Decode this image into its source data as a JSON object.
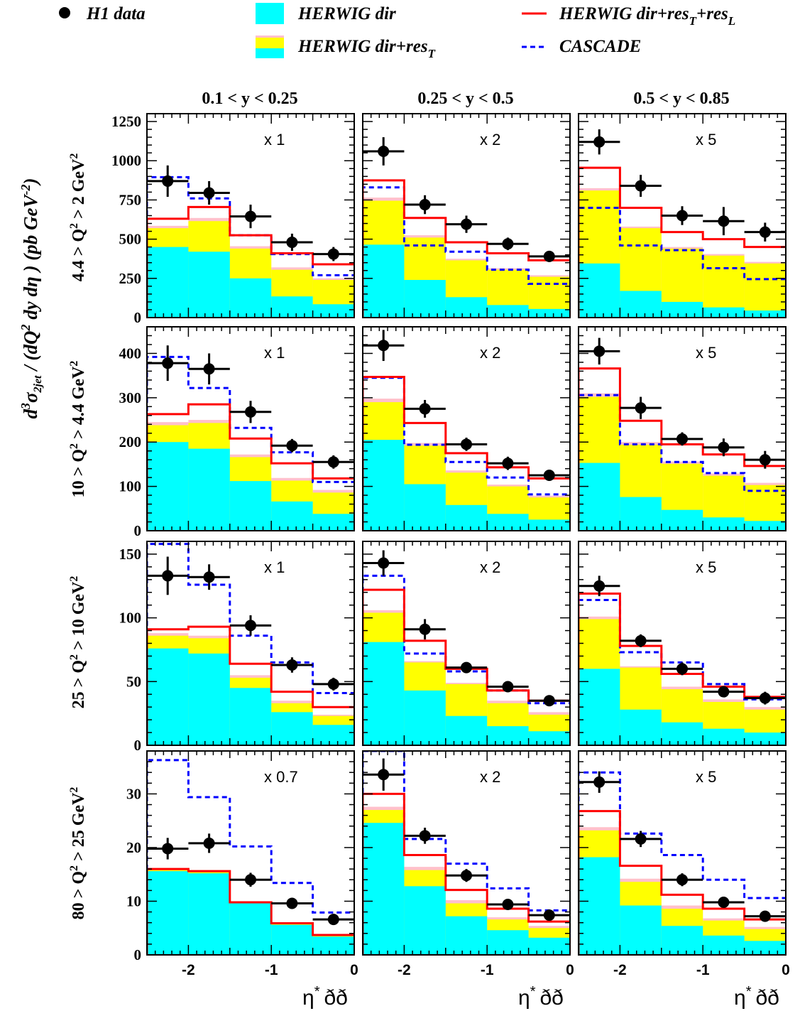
{
  "legend": {
    "h1_data": "H1 data",
    "herwig_dir": "HERWIG dir",
    "herwig_dir_res_t": "HERWIG dir+res",
    "herwig_dir_res_t_sub": "T",
    "herwig_full": "HERWIG dir+res",
    "herwig_full_sub1": "T",
    "herwig_full_mid": "+res",
    "herwig_full_sub2": "L",
    "cascade": "CASCADE"
  },
  "y_axis_label": {
    "main": "d",
    "sup3": "3",
    "sigma": "σ",
    "sub2jet": "2jet",
    "slash": " / (dQ",
    "sup2": "2",
    "rest": " dy dη )",
    "units": "(pb GeV",
    "units_sup": "-2",
    "units_close": ")"
  },
  "x_axis_label": {
    "eta": "η",
    "star": "*",
    "suffix": "ðð"
  },
  "colors": {
    "herwig_dir": "#00ffff",
    "herwig_res_t": "#ffff00",
    "herwig_pink": "#ffc0cb",
    "herwig_full": "#ff0000",
    "cascade": "#0000ff",
    "data": "#000000"
  },
  "chart_data": {
    "type": "bar",
    "x_edges": [
      -2.5,
      -2.0,
      -1.5,
      -1.0,
      -0.5,
      0.0
    ],
    "x_ticks": [
      "-2",
      "-1",
      "0"
    ],
    "columns": [
      "0.1 < y < 0.25",
      "0.25 < y < 0.5",
      "0.5 < y < 0.85"
    ],
    "rows": [
      {
        "label": "4.4 > Q",
        "label_sup": "2",
        "label_end": " > 2 GeV",
        "label_end_sup": "2",
        "ylim": [
          0,
          1300
        ],
        "yticks": [
          "0",
          "250",
          "500",
          "750",
          "1000",
          "1250"
        ],
        "panels": [
          {
            "scale": "x 1",
            "data_x": [
              -2.25,
              -1.75,
              -1.25,
              -0.75,
              -0.25
            ],
            "data_y": [
              870,
              795,
              645,
              480,
              405
            ],
            "data_err": [
              100,
              75,
              75,
              55,
              45
            ],
            "data_xerr": 0.25,
            "dir": [
              450,
              420,
              250,
              135,
              85
            ],
            "dir_res_t": [
              570,
              615,
              440,
              305,
              240
            ],
            "dir_res_t_pink": [
              585,
              635,
              455,
              320,
              250
            ],
            "full": [
              630,
              705,
              525,
              410,
              340
            ],
            "cascade": [
              895,
              760,
              525,
              405,
              270
            ]
          },
          {
            "scale": "x 2",
            "data_x": [
              -2.25,
              -1.75,
              -1.25,
              -0.75,
              -0.25
            ],
            "data_y": [
              1060,
              720,
              595,
              470,
              390
            ],
            "data_err": [
              90,
              60,
              55,
              40,
              35
            ],
            "data_xerr": 0.25,
            "dir": [
              465,
              240,
              130,
              80,
              55
            ],
            "dir_res_t": [
              745,
              510,
              365,
              305,
              260
            ],
            "dir_res_t_pink": [
              765,
              525,
              375,
              315,
              270
            ],
            "full": [
              875,
              635,
              480,
              410,
              365
            ],
            "cascade": [
              830,
              460,
              420,
              305,
              215
            ]
          },
          {
            "scale": "x 5",
            "data_x": [
              -2.25,
              -1.75,
              -1.25,
              -0.75,
              -0.25
            ],
            "data_y": [
              1120,
              840,
              650,
              615,
              545
            ],
            "data_err": [
              80,
              70,
              60,
              90,
              60
            ],
            "data_xerr": 0.25,
            "dir": [
              345,
              170,
              100,
              65,
              45
            ],
            "dir_res_t": [
              810,
              570,
              440,
              395,
              345
            ],
            "dir_res_t_pink": [
              825,
              580,
              450,
              405,
              355
            ],
            "full": [
              955,
              700,
              545,
              500,
              450
            ],
            "cascade": [
              700,
              460,
              430,
              315,
              245
            ]
          }
        ]
      },
      {
        "label": "10 > Q",
        "label_sup": "2",
        "label_end": " > 4.4 GeV",
        "label_end_sup": "2",
        "ylim": [
          0,
          460
        ],
        "yticks": [
          "0",
          "100",
          "200",
          "300",
          "400"
        ],
        "panels": [
          {
            "scale": "x 1",
            "data_x": [
              -2.25,
              -1.75,
              -1.25,
              -0.75,
              -0.25
            ],
            "data_y": [
              378,
              365,
              268,
              192,
              155
            ],
            "data_err": [
              40,
              35,
              25,
              15,
              15
            ],
            "data_xerr": 0.25,
            "dir": [
              200,
              185,
              112,
              66,
              38
            ],
            "dir_res_t": [
              238,
              243,
              166,
              113,
              86
            ],
            "dir_res_t_pink": [
              245,
              250,
              172,
              119,
              92
            ],
            "full": [
              263,
              285,
              208,
              152,
              118
            ],
            "cascade": [
              392,
              322,
              232,
              177,
              110
            ]
          },
          {
            "scale": "x 2",
            "data_x": [
              -2.25,
              -1.75,
              -1.25,
              -0.75,
              -0.25
            ],
            "data_y": [
              418,
              275,
              195,
              152,
              125
            ],
            "data_err": [
              35,
              20,
              15,
              15,
              12
            ],
            "data_xerr": 0.25,
            "dir": [
              205,
              105,
              58,
              38,
              25
            ],
            "dir_res_t": [
              290,
              192,
              131,
              100,
              75
            ],
            "dir_res_t_pink": [
              298,
              198,
              136,
              104,
              79
            ],
            "full": [
              347,
              243,
              175,
              143,
              118
            ],
            "cascade": [
              345,
              194,
              155,
              120,
              82
            ]
          },
          {
            "scale": "x 5",
            "data_x": [
              -2.25,
              -1.75,
              -1.25,
              -0.75,
              -0.25
            ],
            "data_y": [
              405,
              277,
              207,
              188,
              160
            ],
            "data_err": [
              30,
              25,
              15,
              20,
              20
            ],
            "data_xerr": 0.25,
            "dir": [
              153,
              76,
              47,
              30,
              22
            ],
            "dir_res_t": [
              302,
              194,
              151,
              124,
              103
            ],
            "dir_res_t_pink": [
              310,
              200,
              156,
              129,
              108
            ],
            "full": [
              366,
              248,
              195,
              172,
              146
            ],
            "cascade": [
              306,
              195,
              155,
              130,
              90
            ]
          }
        ]
      },
      {
        "label": "25 > Q",
        "label_sup": "2",
        "label_end": " > 10 GeV",
        "label_end_sup": "2",
        "ylim": [
          0,
          160
        ],
        "yticks": [
          "0",
          "50",
          "100",
          "150"
        ],
        "panels": [
          {
            "scale": "x 1",
            "data_x": [
              -2.25,
              -1.75,
              -1.25,
              -0.75,
              -0.25
            ],
            "data_y": [
              133,
              132,
              94,
              63,
              48
            ],
            "data_err": [
              15,
              10,
              8,
              6,
              5
            ],
            "data_xerr": 0.25,
            "dir": [
              76,
              72,
              45,
              26,
              16
            ],
            "dir_res_t": [
              86,
              84,
              53,
              33,
              23
            ],
            "dir_res_t_pink": [
              88,
              86,
              55,
              35,
              24
            ],
            "full": [
              91,
              93,
              64,
              42,
              30
            ],
            "cascade": [
              158,
              126,
              86,
              65,
              41
            ]
          },
          {
            "scale": "x 2",
            "data_x": [
              -2.25,
              -1.75,
              -1.25,
              -0.75,
              -0.25
            ],
            "data_y": [
              143,
              91,
              61,
              46,
              35
            ],
            "data_err": [
              10,
              8,
              4,
              4,
              3
            ],
            "data_xerr": 0.25,
            "dir": [
              81,
              43,
              23,
              15,
              11
            ],
            "dir_res_t": [
              104,
              65,
              48,
              33,
              24
            ],
            "dir_res_t_pink": [
              106,
              66,
              49,
              35,
              26
            ],
            "full": [
              122,
              82,
              60,
              43,
              35
            ],
            "cascade": [
              133,
              72,
              58,
              43,
              33
            ]
          },
          {
            "scale": "x 5",
            "data_x": [
              -2.25,
              -1.75,
              -1.25,
              -0.75,
              -0.25
            ],
            "data_y": [
              125,
              82,
              60,
              42,
              37
            ],
            "data_err": [
              8,
              5,
              5,
              4,
              5
            ],
            "data_xerr": 0.25,
            "dir": [
              60,
              28,
              18,
              13,
              10
            ],
            "dir_res_t": [
              99,
              61,
              44,
              34,
              28
            ],
            "dir_res_t_pink": [
              101,
              62,
              46,
              36,
              30
            ],
            "full": [
              119,
              78,
              56,
              46,
              38
            ],
            "cascade": [
              114,
              73,
              65,
              48,
              36
            ]
          }
        ]
      },
      {
        "label": "80 > Q",
        "label_sup": "2",
        "label_end": " > 25 GeV",
        "label_end_sup": "2",
        "ylim": [
          0,
          38
        ],
        "yticks": [
          "0",
          "10",
          "20",
          "30"
        ],
        "panels": [
          {
            "scale": "x 0.7",
            "data_x": [
              -2.25,
              -1.75,
              -1.25,
              -0.75,
              -0.25
            ],
            "data_y": [
              19.8,
              20.8,
              14.0,
              9.6,
              6.6
            ],
            "data_err": [
              2,
              1.8,
              1.3,
              1.0,
              0.8
            ],
            "data_xerr": 0.25,
            "dir": [
              15.6,
              15.2,
              9.6,
              5.6,
              3.4
            ],
            "dir_res_t": [
              15.8,
              15.4,
              9.8,
              5.8,
              3.6
            ],
            "dir_res_t_pink": [
              16.0,
              15.6,
              9.9,
              5.9,
              3.7
            ],
            "full": [
              16.0,
              15.6,
              9.8,
              5.9,
              3.7
            ],
            "cascade": [
              36.3,
              29.4,
              20.2,
              13.4,
              7.9
            ]
          },
          {
            "scale": "x 2",
            "data_x": [
              -2.25,
              -1.75,
              -1.25,
              -0.75,
              -0.25
            ],
            "data_y": [
              33.6,
              22.2,
              14.8,
              9.4,
              7.4
            ],
            "data_err": [
              3,
              1.5,
              1.2,
              0.7,
              0.6
            ],
            "data_xerr": 0.25,
            "dir": [
              24.6,
              12.8,
              7.2,
              4.6,
              3.2
            ],
            "dir_res_t": [
              27.0,
              15.8,
              9.6,
              6.6,
              5.0
            ],
            "dir_res_t_pink": [
              27.6,
              16.4,
              10.2,
              7.0,
              5.4
            ],
            "full": [
              30.0,
              18.6,
              12.1,
              8.6,
              6.2
            ],
            "cascade": [
              38.0,
              21.6,
              17.0,
              12.4,
              8.3
            ]
          },
          {
            "scale": "x 5",
            "data_x": [
              -2.25,
              -1.75,
              -1.25,
              -0.75,
              -0.25
            ],
            "data_y": [
              32.2,
              21.6,
              14.0,
              9.8,
              7.2
            ],
            "data_err": [
              2,
              1.5,
              1.2,
              0.9,
              0.6
            ],
            "data_xerr": 0.25,
            "dir": [
              18.2,
              9.2,
              5.4,
              3.6,
              2.6
            ],
            "dir_res_t": [
              23.2,
              13.6,
              8.6,
              6.4,
              4.8
            ],
            "dir_res_t_pink": [
              23.8,
              14.2,
              9.2,
              6.8,
              5.2
            ],
            "full": [
              26.8,
              16.6,
              11.2,
              8.6,
              6.6
            ],
            "cascade": [
              34.0,
              22.6,
              18.6,
              14.0,
              10.6
            ]
          }
        ]
      }
    ]
  }
}
